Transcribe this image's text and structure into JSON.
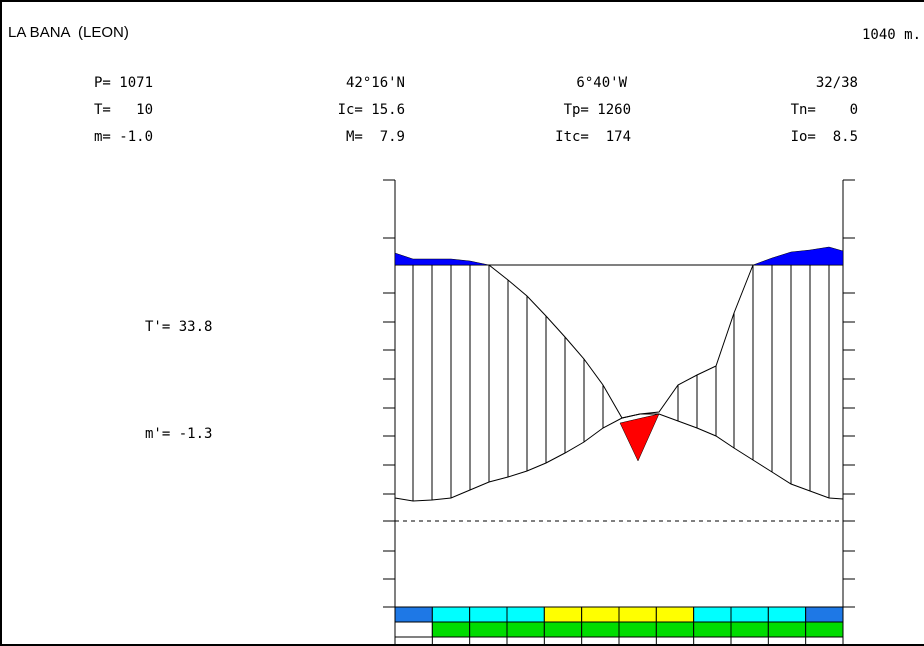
{
  "header": {
    "station": "LA BANA  (LEON)",
    "altitude": "1040 m."
  },
  "params": {
    "P": "P= 1071",
    "lat": "42°16'N",
    "lon": "6°40'W",
    "years": "32/38",
    "T": "T=   10",
    "Ic": "Ic= 15.6",
    "Tp": "Tp= 1260",
    "Tn": "Tn=    0",
    "m": "m= -1.0",
    "M": "M=  7.9",
    "Itc": "Itc=  174",
    "Io": "Io=  8.5"
  },
  "side": {
    "T_prime": "T'= 33.8",
    "m_prime": "m'= -1.3"
  },
  "colors": {
    "excess": "#0000ff",
    "deficit": "#ff0000",
    "bar_dark_blue": "#1e78e6",
    "bar_cyan": "#00ffff",
    "bar_yellow": "#ffff00",
    "bar_green": "#00dc00",
    "bar_white": "#ffffff"
  },
  "chart_data": {
    "type": "area",
    "title": "",
    "xlabel": "",
    "ylabel": "",
    "months": 12,
    "grid": false,
    "series": [
      {
        "values": [
          95,
          93,
          92,
          85,
          79,
          74,
          62,
          52,
          56,
          72,
          88,
          96
        ]
      },
      {
        "values": [
          97,
          93,
          92,
          89,
          84,
          75,
          64,
          64,
          63,
          74,
          88,
          95
        ]
      }
    ],
    "temperature": [
      -8.3,
      -8.8,
      -8.5,
      -6.0,
      -4.2,
      -1.9,
      1.7,
      3.6,
      1.1,
      -3.4,
      -6.1,
      -8.1
    ],
    "precipitation": [
      -9.5,
      -9.1,
      -8.8,
      -6.1,
      -4.7,
      -2.2,
      1.5,
      2.3,
      1.6,
      -2.2,
      -6.1,
      -8.8
    ],
    "bar_top": [
      "dark_blue",
      "cyan",
      "cyan",
      "cyan",
      "yellow",
      "yellow",
      "yellow",
      "yellow",
      "cyan",
      "cyan",
      "cyan",
      "dark_blue"
    ],
    "bar_bottom": [
      "white",
      "green",
      "green",
      "green",
      "green",
      "green",
      "green",
      "green",
      "green",
      "green",
      "green",
      "green"
    ]
  }
}
